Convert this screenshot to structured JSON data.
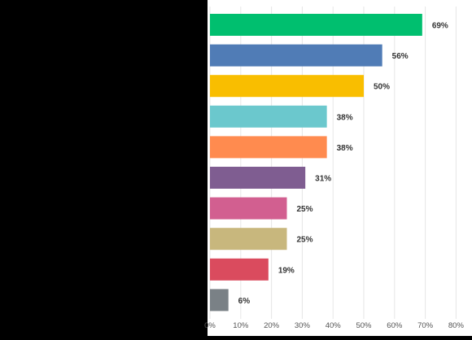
{
  "chart_data": {
    "type": "bar",
    "orientation": "horizontal",
    "title": "",
    "xlabel": "",
    "ylabel": "",
    "xlim": [
      0,
      80
    ],
    "grid": true,
    "legend": "none",
    "x_tick_values": [
      0,
      10,
      20,
      30,
      40,
      50,
      60,
      70,
      80
    ],
    "x_tick_labels": [
      "0%",
      "10%",
      "20%",
      "30%",
      "40%",
      "50%",
      "60%",
      "70%",
      "80%"
    ],
    "categories": [
      "",
      "",
      "",
      "",
      "",
      "",
      "",
      "",
      "",
      ""
    ],
    "values": [
      69,
      56,
      50,
      38,
      38,
      31,
      25,
      25,
      19,
      6
    ],
    "value_labels": [
      "69%",
      "56%",
      "50%",
      "38%",
      "38%",
      "31%",
      "25%",
      "25%",
      "19%",
      "6%"
    ],
    "colors": [
      "#00BF6F",
      "#507CB6",
      "#F9BE00",
      "#6BC8CD",
      "#FF8B4F",
      "#7F5D91",
      "#D25F90",
      "#C8B77D",
      "#DA4B5E",
      "#7A8186"
    ]
  }
}
